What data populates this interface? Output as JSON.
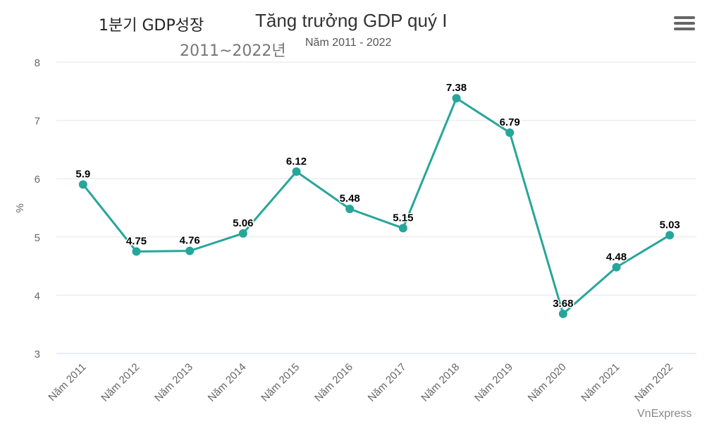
{
  "header": {
    "korean_title": "1분기 GDP성장",
    "korean_subtitle": "2011~2022년",
    "menu_icon": "hamburger-menu-icon"
  },
  "credit": "VnExpress",
  "colors": {
    "line": "#26a69a",
    "grid": "#e6e6e6",
    "axis": "#ccd6eb",
    "tick_text": "#666666",
    "label_text": "#000000"
  },
  "chart_data": {
    "type": "line",
    "title": "Tăng trưởng GDP quý I",
    "subtitle": "Năm 2011 - 2022",
    "xlabel": "",
    "ylabel": "%",
    "ylim": [
      3,
      8
    ],
    "yticks": [
      3,
      4,
      5,
      6,
      7,
      8
    ],
    "grid": true,
    "categories": [
      "Năm 2011",
      "Năm 2012",
      "Năm 2013",
      "Năm 2014",
      "Năm 2015",
      "Năm 2016",
      "Năm 2017",
      "Năm 2018",
      "Năm 2019",
      "Năm 2020",
      "Năm 2021",
      "Năm 2022"
    ],
    "series": [
      {
        "name": "Tăng trưởng GDP quý I",
        "values": [
          5.9,
          4.75,
          4.76,
          5.06,
          6.12,
          5.48,
          5.15,
          7.38,
          6.79,
          3.68,
          4.48,
          5.03
        ],
        "labels": [
          "5.9",
          "4.75",
          "4.76",
          "5.06",
          "6.12",
          "5.48",
          "5.15",
          "7.38",
          "6.79",
          "3.68",
          "4.48",
          "5.03"
        ]
      }
    ]
  }
}
